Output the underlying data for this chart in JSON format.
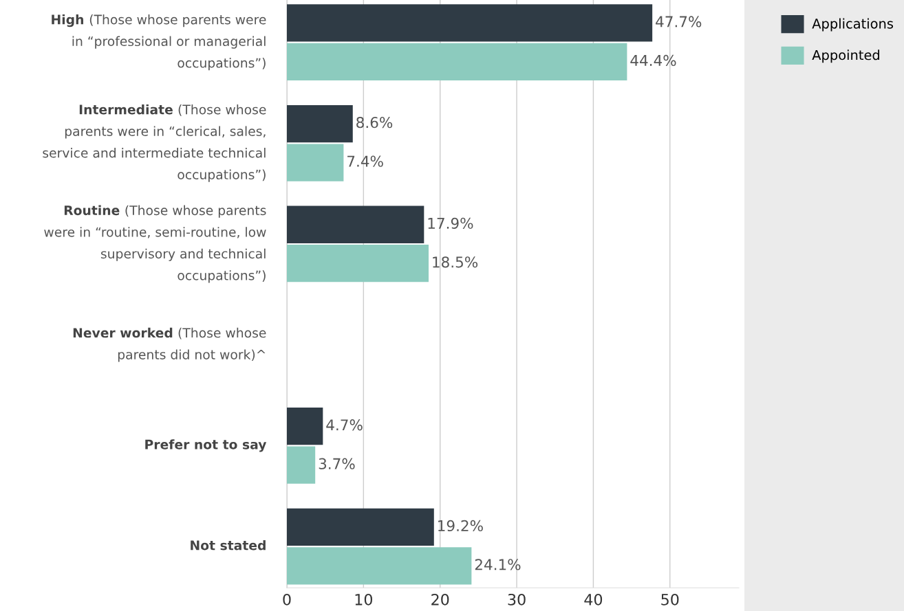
{
  "chart_data": {
    "type": "bar",
    "orientation": "horizontal",
    "categories": [
      "High (Those whose parents were\nin “professional or managerial\noccupations”)",
      "Intermediate (Those whose\nparents were in “clerical, sales,\nservice and intermediate technical\noccupations”)",
      "Routine (Those whose parents\nwere in “routine, semi-routine, low\nsupervisory and technical\noccupations”)",
      "Never worked (Those whose\nparents did not work)^",
      "Prefer not to say",
      "Not stated"
    ],
    "series": [
      {
        "name": "Applications",
        "color": "#2f3b45",
        "values": [
          47.7,
          8.6,
          17.9,
          null,
          4.7,
          19.2
        ],
        "value_labels": [
          "47.7%",
          "8.6%",
          "17.9%",
          null,
          "4.7%",
          "19.2%"
        ]
      },
      {
        "name": "Appointed",
        "color": "#8ccbbe",
        "values": [
          44.4,
          7.4,
          18.5,
          null,
          3.7,
          24.1
        ],
        "value_labels": [
          "44.4%",
          "7.4%",
          "18.5%",
          null,
          "3.7%",
          "24.1%"
        ]
      }
    ],
    "xlim": [
      0,
      59
    ],
    "xticks": [
      0,
      10,
      20,
      30,
      40,
      50
    ],
    "grid": "x",
    "legend": "top right"
  }
}
